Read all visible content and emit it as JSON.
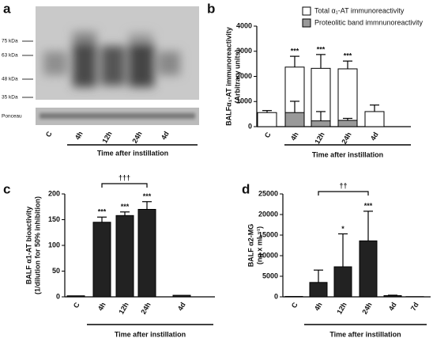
{
  "blot": {
    "panel": "a",
    "markers": [
      "75 kDa",
      "63 kDa",
      "48 kDa",
      "35 kDa"
    ],
    "strip": "Ponceau",
    "lanes": [
      "C",
      "4h",
      "12h",
      "24h",
      "4d"
    ],
    "xlabel": "Time after instillation"
  },
  "chart_data": [
    {
      "type": "bar",
      "panel": "b",
      "barmode": "overlay",
      "ylabel": [
        "BALFα₁-AT immunoreactivity",
        "(Arbitrary units)"
      ],
      "xlabel": "Time after instillation",
      "categories": [
        "C",
        "4h",
        "12h",
        "24h",
        "4d"
      ],
      "series": [
        {
          "name": "Total α₁-AT immunoreactivity",
          "color": "#ffffff",
          "values": [
            560,
            2370,
            2320,
            2300,
            600
          ],
          "errors": [
            80,
            430,
            550,
            310,
            260
          ]
        },
        {
          "name": "Proteolitic band immnunoreactivity",
          "color": "#999999",
          "values": [
            null,
            560,
            230,
            250,
            null
          ],
          "errors": [
            null,
            450,
            370,
            80,
            null
          ]
        }
      ],
      "significance": [
        null,
        "***",
        "***",
        "***",
        null
      ],
      "ylim": [
        0,
        4000
      ],
      "yticks": [
        0,
        1000,
        2000,
        3000,
        4000
      ],
      "legend": "top-right"
    },
    {
      "type": "bar",
      "panel": "c",
      "ylabel": [
        "BALF α1-AT bioactivity",
        "(1/dilution for 50% inhibition)"
      ],
      "xlabel": "Time after instillation",
      "categories": [
        "C",
        "4h",
        "12h",
        "24h",
        "4d"
      ],
      "series": [
        {
          "color": "#222222",
          "values": [
            2,
            145,
            158,
            170,
            3
          ],
          "errors": [
            0,
            10,
            7,
            15,
            0
          ]
        }
      ],
      "significance": [
        null,
        "***",
        "***",
        "***",
        null
      ],
      "bracket": {
        "label": "†††",
        "categories": [
          "4h",
          "24h"
        ]
      },
      "ylim": [
        0,
        200
      ],
      "yticks": [
        0,
        50,
        100,
        150,
        200
      ]
    },
    {
      "type": "bar",
      "panel": "d",
      "ylabel": [
        "BALF α2-MG",
        "(ng x mL⁻¹)"
      ],
      "xlabel": "Time after instillation",
      "categories": [
        "C",
        "4h",
        "12h",
        "24h",
        "4d",
        "7d"
      ],
      "series": [
        {
          "color": "#222222",
          "values": [
            100,
            3500,
            7300,
            13600,
            300,
            50
          ],
          "errors": [
            0,
            3000,
            8000,
            7200,
            100,
            0
          ]
        }
      ],
      "significance": [
        null,
        null,
        "*",
        "***",
        null,
        null
      ],
      "bracket": {
        "label": "††",
        "categories": [
          "4h",
          "24h"
        ]
      },
      "ylim": [
        0,
        25000
      ],
      "yticks": [
        0,
        5000,
        10000,
        15000,
        20000,
        25000
      ]
    }
  ]
}
